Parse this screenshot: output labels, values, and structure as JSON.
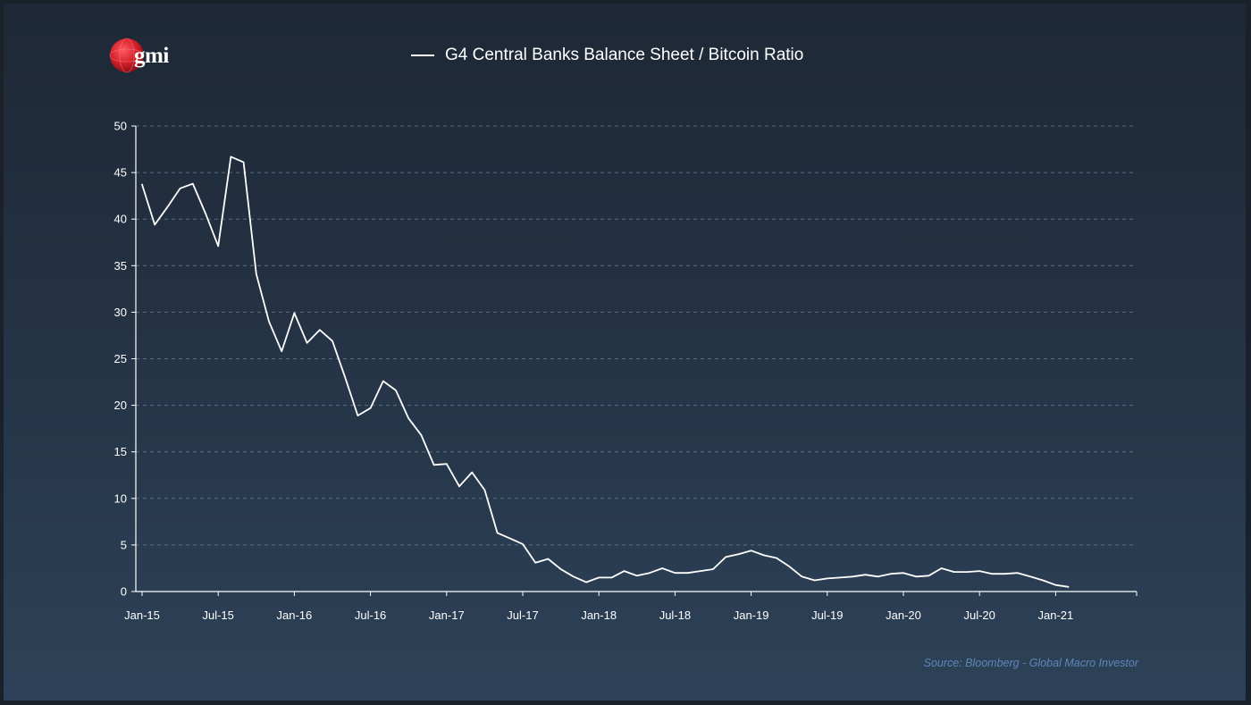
{
  "brand": {
    "logo_text": "gmi",
    "logo_color": "#d2202a"
  },
  "footer": {
    "source": "Source: Bloomberg - Global Macro Investor"
  },
  "chart_data": {
    "type": "line",
    "title": "",
    "xlabel": "",
    "ylabel": "",
    "legend_position": "top-center",
    "grid": {
      "horizontal": true,
      "style": "dashed"
    },
    "ylim": [
      0,
      50
    ],
    "yticks": [
      0,
      5,
      10,
      15,
      20,
      25,
      30,
      35,
      40,
      45,
      50
    ],
    "xticks": [
      "Jan-15",
      "Jul-15",
      "Jan-16",
      "Jul-16",
      "Jan-17",
      "Jul-17",
      "Jan-18",
      "Jul-18",
      "Jan-19",
      "Jul-19",
      "Jan-20",
      "Jul-20",
      "Jan-21"
    ],
    "series": [
      {
        "name": "G4 Central Banks Balance Sheet / Bitcoin Ratio",
        "color": "#ffffff",
        "x": [
          "Jan-15",
          "Feb-15",
          "Mar-15",
          "Apr-15",
          "May-15",
          "Jun-15",
          "Jul-15",
          "Aug-15",
          "Sep-15",
          "Oct-15",
          "Nov-15",
          "Dec-15",
          "Jan-16",
          "Feb-16",
          "Mar-16",
          "Apr-16",
          "May-16",
          "Jun-16",
          "Jul-16",
          "Aug-16",
          "Sep-16",
          "Oct-16",
          "Nov-16",
          "Dec-16",
          "Jan-17",
          "Feb-17",
          "Mar-17",
          "Apr-17",
          "May-17",
          "Jun-17",
          "Jul-17",
          "Aug-17",
          "Sep-17",
          "Oct-17",
          "Nov-17",
          "Dec-17",
          "Jan-18",
          "Feb-18",
          "Mar-18",
          "Apr-18",
          "May-18",
          "Jun-18",
          "Jul-18",
          "Aug-18",
          "Sep-18",
          "Oct-18",
          "Nov-18",
          "Dec-18",
          "Jan-19",
          "Feb-19",
          "Mar-19",
          "Apr-19",
          "May-19",
          "Jun-19",
          "Jul-19",
          "Aug-19",
          "Sep-19",
          "Oct-19",
          "Nov-19",
          "Dec-19",
          "Jan-20",
          "Feb-20",
          "Mar-20",
          "Apr-20",
          "May-20",
          "Jun-20",
          "Jul-20",
          "Aug-20",
          "Sep-20",
          "Oct-20",
          "Nov-20",
          "Dec-20",
          "Jan-21",
          "Feb-21"
        ],
        "values": [
          43.7,
          39.4,
          41.3,
          43.3,
          43.8,
          40.6,
          37.1,
          46.7,
          46.1,
          34.1,
          29.0,
          25.8,
          29.9,
          26.7,
          28.1,
          26.9,
          23.0,
          18.9,
          19.7,
          22.6,
          21.6,
          18.6,
          16.8,
          13.6,
          13.7,
          11.3,
          12.8,
          10.9,
          6.3,
          5.7,
          5.1,
          3.1,
          3.5,
          2.4,
          1.6,
          1.0,
          1.5,
          1.5,
          2.2,
          1.7,
          2.0,
          2.5,
          2.0,
          2.0,
          2.2,
          2.4,
          3.7,
          4.0,
          4.4,
          3.9,
          3.6,
          2.7,
          1.6,
          1.2,
          1.4,
          1.5,
          1.6,
          1.8,
          1.6,
          1.9,
          2.0,
          1.6,
          1.7,
          2.5,
          2.1,
          2.1,
          2.2,
          1.9,
          1.9,
          2.0,
          1.6,
          1.2,
          0.7,
          0.5
        ]
      }
    ]
  }
}
